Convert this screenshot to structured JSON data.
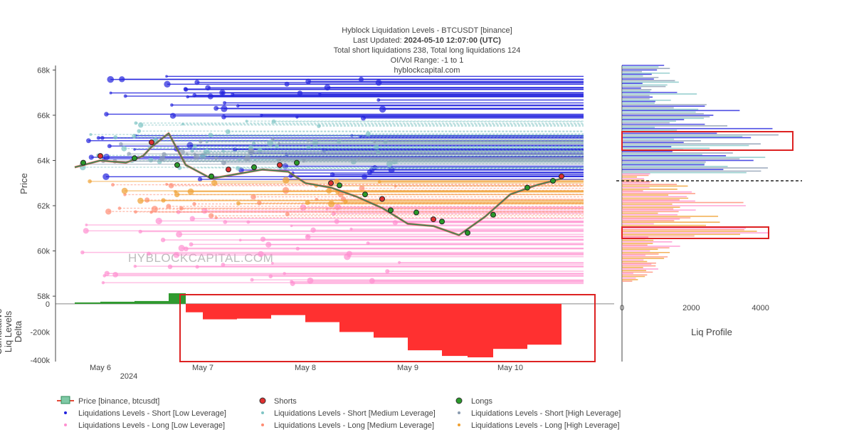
{
  "header": {
    "line1": "Hyblock Liquidation Levels - BTCUSDT [binance]",
    "line2_prefix": "Last Updated: ",
    "line2_value": "2024-05-10 12:07:00 (UTC)",
    "line3": "Total short liquidations 238, Total long liquidations 124",
    "line4": "OI/Vol Range: -1 to 1",
    "line5": "hyblockcapital.com"
  },
  "watermark": "HYBLOCKCAPITAL.COM",
  "colors": {
    "short_low": "#2222dd",
    "short_medium": "#7fc4c4",
    "short_high": "#8a9bb0",
    "long_low": "#ff8fd0",
    "long_medium": "#ff8c73",
    "long_high": "#f0a030",
    "price_up": "#2e8b57",
    "price_down": "#e34a3a",
    "shorts_marker": "#e03030",
    "longs_marker": "#2a9a2a",
    "delta_positive": "#2f9a2f",
    "delta_negative": "#ff3030",
    "highlight_box": "#dd2222"
  },
  "chart_data": [
    {
      "type": "line",
      "name": "price-panel",
      "ylabel": "Price",
      "y_ticks": [
        "58k",
        "60k",
        "62k",
        "64k",
        "66k",
        "68k"
      ],
      "y_tick_values": [
        58000,
        60000,
        62000,
        64000,
        66000,
        68000
      ],
      "ylim": [
        57500,
        68200
      ],
      "x_ticks": [
        "May 6",
        "May 7",
        "May 8",
        "May 9",
        "May 10"
      ],
      "x_sub_label": "2024",
      "xlim": [
        "2024-05-05 18:00",
        "2024-05-10 23:00"
      ],
      "price_series": {
        "name": "Price [binance, btcusdt]",
        "x": [
          "2024-05-05 18:00",
          "2024-05-06 00:00",
          "2024-05-06 06:00",
          "2024-05-06 10:00",
          "2024-05-06 12:00",
          "2024-05-06 16:00",
          "2024-05-06 20:00",
          "2024-05-07 02:00",
          "2024-05-07 08:00",
          "2024-05-07 14:00",
          "2024-05-07 20:00",
          "2024-05-08 00:00",
          "2024-05-08 06:00",
          "2024-05-08 12:00",
          "2024-05-08 18:00",
          "2024-05-09 00:00",
          "2024-05-09 06:00",
          "2024-05-09 12:00",
          "2024-05-09 18:00",
          "2024-05-10 00:00",
          "2024-05-10 06:00",
          "2024-05-10 12:00"
        ],
        "y": [
          63700,
          64000,
          63900,
          64200,
          64600,
          65200,
          63800,
          63200,
          63400,
          63600,
          63500,
          63000,
          62800,
          62400,
          61900,
          61200,
          61100,
          60700,
          61500,
          62500,
          62900,
          63200
        ]
      },
      "liquidation_series": [
        {
          "name": "Liquidations Levels - Short [Low Leverage]",
          "levels": [
            66000,
            66400,
            66800,
            67000,
            67300,
            67600,
            65000,
            64600,
            64200,
            63600,
            63300
          ]
        },
        {
          "name": "Liquidations Levels - Short [Medium Leverage]",
          "levels": [
            65600,
            65200,
            64900,
            64700,
            64500,
            64300,
            64000,
            63800
          ]
        },
        {
          "name": "Liquidations Levels - Short [High Leverage]",
          "levels": [
            64800,
            64400,
            64100,
            63900
          ]
        },
        {
          "name": "Liquidations Levels - Long [Low Leverage]",
          "levels": [
            61800,
            61400,
            61000,
            60600,
            60200,
            59800,
            59400,
            59000,
            58600
          ]
        },
        {
          "name": "Liquidations Levels - Long [Medium Leverage]",
          "levels": [
            62800,
            62400,
            62000,
            61600
          ]
        },
        {
          "name": "Liquidations Levels - Long [High Leverage]",
          "levels": [
            63000,
            62600,
            62200
          ]
        }
      ],
      "shorts_points": {
        "name": "Shorts",
        "x": [
          "2024-05-06 00:00",
          "2024-05-06 12:00",
          "2024-05-07 06:00",
          "2024-05-07 18:00",
          "2024-05-08 06:00",
          "2024-05-08 18:00",
          "2024-05-09 06:00",
          "2024-05-10 12:00"
        ],
        "y": [
          64200,
          64800,
          63600,
          63800,
          63000,
          62300,
          61400,
          63300
        ]
      },
      "longs_points": {
        "name": "Longs",
        "x": [
          "2024-05-05 20:00",
          "2024-05-06 08:00",
          "2024-05-06 18:00",
          "2024-05-07 02:00",
          "2024-05-07 12:00",
          "2024-05-07 22:00",
          "2024-05-08 08:00",
          "2024-05-08 14:00",
          "2024-05-08 20:00",
          "2024-05-09 02:00",
          "2024-05-09 08:00",
          "2024-05-09 14:00",
          "2024-05-09 20:00",
          "2024-05-10 04:00",
          "2024-05-10 10:00"
        ],
        "y": [
          63900,
          64100,
          63800,
          63300,
          63700,
          63900,
          62900,
          62500,
          61800,
          61700,
          61300,
          60800,
          61600,
          62800,
          63100
        ]
      }
    },
    {
      "type": "area",
      "name": "delta-panel",
      "ylabel": "Cumulative Liq Levels Delta",
      "y_ticks": [
        "0",
        "-200k",
        "-400k"
      ],
      "y_tick_values": [
        0,
        -200000,
        -400000
      ],
      "ylim": [
        -410000,
        60000
      ],
      "x": [
        "2024-05-05 18:00",
        "2024-05-06 00:00",
        "2024-05-06 08:00",
        "2024-05-06 16:00",
        "2024-05-06 20:00",
        "2024-05-07 00:00",
        "2024-05-07 08:00",
        "2024-05-07 16:00",
        "2024-05-08 00:00",
        "2024-05-08 08:00",
        "2024-05-08 16:00",
        "2024-05-09 00:00",
        "2024-05-09 08:00",
        "2024-05-09 14:00",
        "2024-05-09 20:00",
        "2024-05-10 04:00",
        "2024-05-10 12:00"
      ],
      "values": [
        10000,
        15000,
        20000,
        75000,
        -60000,
        -110000,
        -105000,
        -80000,
        -130000,
        -200000,
        -240000,
        -330000,
        -370000,
        -380000,
        -320000,
        -290000,
        -210000
      ]
    },
    {
      "type": "bar",
      "name": "liq-profile",
      "orientation": "horizontal",
      "xlabel": "Liq Profile",
      "x_ticks": [
        "0",
        "2000",
        "4000"
      ],
      "x_tick_values": [
        0,
        2000,
        4000
      ],
      "xlim": [
        0,
        5200
      ],
      "bins": [
        68000,
        67600,
        67200,
        66800,
        66400,
        66000,
        65600,
        65200,
        64800,
        64400,
        64000,
        63600,
        63200,
        62800,
        62400,
        62000,
        61600,
        61200,
        60800,
        60400,
        60000,
        59600,
        59200,
        58800
      ],
      "values": [
        1500,
        1800,
        1600,
        2200,
        2600,
        3600,
        3100,
        4800,
        4900,
        3800,
        4400,
        4600,
        1000,
        2000,
        2200,
        4300,
        2800,
        3000,
        4400,
        2100,
        2000,
        1800,
        1400,
        900
      ]
    }
  ],
  "legend": {
    "price": "Price [binance, btcusdt]",
    "shorts": "Shorts",
    "longs": "Longs",
    "short_low": "Liquidations Levels - Short [Low Leverage]",
    "short_medium": "Liquidations Levels - Short [Medium Leverage]",
    "short_high": "Liquidations Levels - Short [High Leverage]",
    "long_low": "Liquidations Levels - Long [Low Leverage]",
    "long_medium": "Liquidations Levels - Long [Medium Leverage]",
    "long_high": "Liquidations Levels - Long [High Leverage]"
  }
}
